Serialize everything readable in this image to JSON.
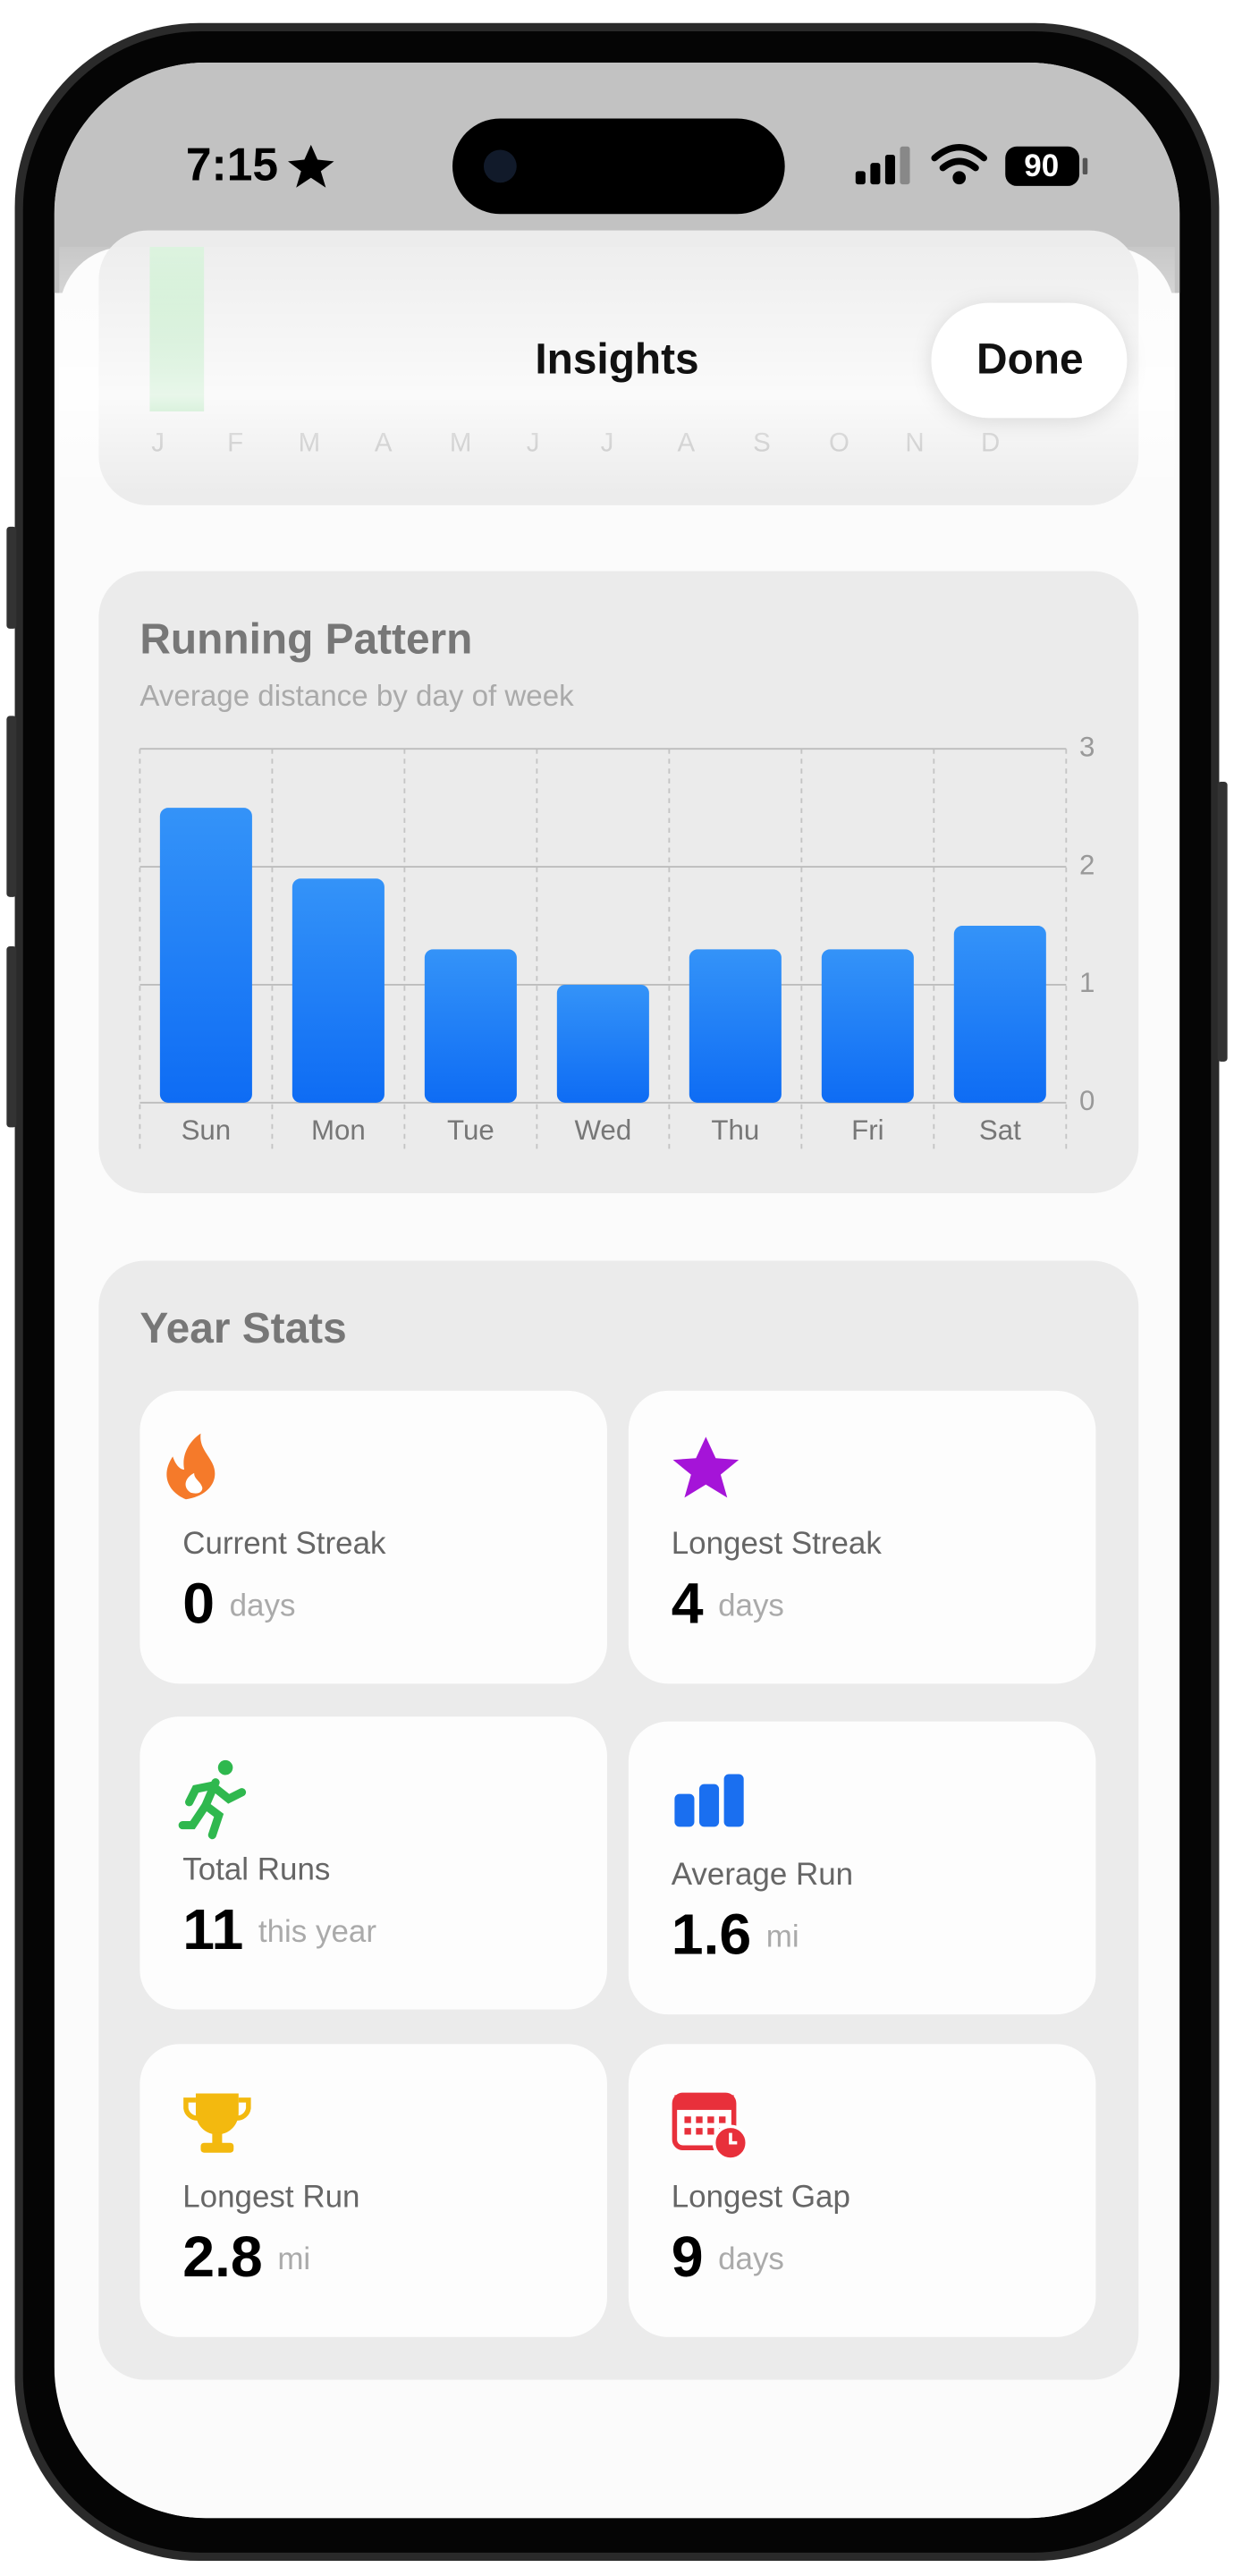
{
  "status_bar": {
    "time": "7:15",
    "battery": "90"
  },
  "header": {
    "title": "Insights",
    "done_button": "Done"
  },
  "monthly_chart_months": [
    "J",
    "F",
    "M",
    "A",
    "M",
    "J",
    "J",
    "A",
    "S",
    "O",
    "N",
    "D"
  ],
  "running_pattern": {
    "type": "bar",
    "title": "Running Pattern",
    "subtitle": "Average distance by day of week",
    "categories": [
      "Sun",
      "Mon",
      "Tue",
      "Wed",
      "Thu",
      "Fri",
      "Sat"
    ],
    "values": [
      2.5,
      1.9,
      1.3,
      1.0,
      1.3,
      1.3,
      1.5
    ],
    "color": "#1a7cf6",
    "ylim": [
      0,
      3
    ],
    "yticks": [
      0,
      1,
      2,
      3
    ],
    "grid": true
  },
  "year_stats": {
    "title": "Year Stats",
    "cards": [
      {
        "icon": "flame",
        "label": "Current Streak",
        "value": "0",
        "unit": "days"
      },
      {
        "icon": "star",
        "label": "Longest Streak",
        "value": "4",
        "unit": "days"
      },
      {
        "icon": "runner",
        "label": "Total Runs",
        "value": "11",
        "unit": "this year"
      },
      {
        "icon": "bars",
        "label": "Average Run",
        "value": "1.6",
        "unit": "mi"
      },
      {
        "icon": "trophy",
        "label": "Longest Run",
        "value": "2.8",
        "unit": "mi"
      },
      {
        "icon": "calendar",
        "label": "Longest Gap",
        "value": "9",
        "unit": "days"
      }
    ]
  }
}
